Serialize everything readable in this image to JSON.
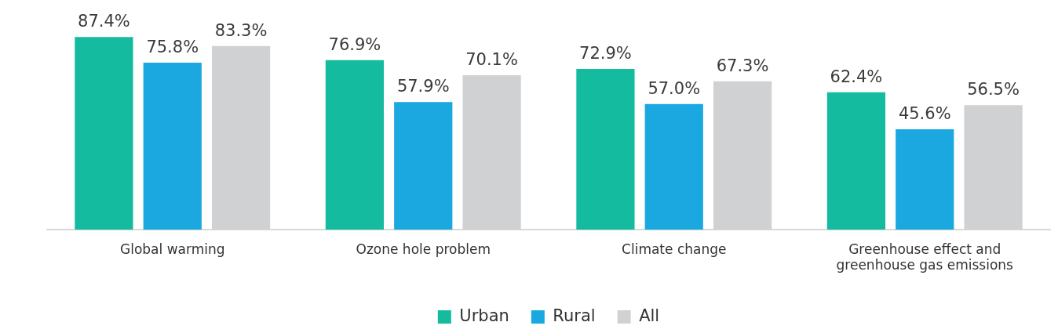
{
  "chart_data": {
    "type": "bar",
    "categories": [
      "Global warming",
      "Ozone hole problem",
      "Climate change",
      "Greenhouse effect and greenhouse gas emissions"
    ],
    "series": [
      {
        "name": "Urban",
        "color": "#15bb9e",
        "values": [
          87.4,
          76.9,
          72.9,
          62.4
        ],
        "value_labels": [
          "87.4%",
          "76.9%",
          "72.9%",
          "62.4%"
        ]
      },
      {
        "name": "Rural",
        "color": "#1ba8e0",
        "values": [
          75.8,
          57.9,
          57.0,
          45.6
        ],
        "value_labels": [
          "75.8%",
          "57.9%",
          "57.0%",
          "45.6%"
        ]
      },
      {
        "name": "All",
        "color": "#d0d1d3",
        "values": [
          83.3,
          70.1,
          67.3,
          56.5
        ],
        "value_labels": [
          "83.3%",
          "70.1%",
          "67.3%",
          "56.5%"
        ]
      }
    ],
    "legend": "bottom",
    "grid": false
  }
}
